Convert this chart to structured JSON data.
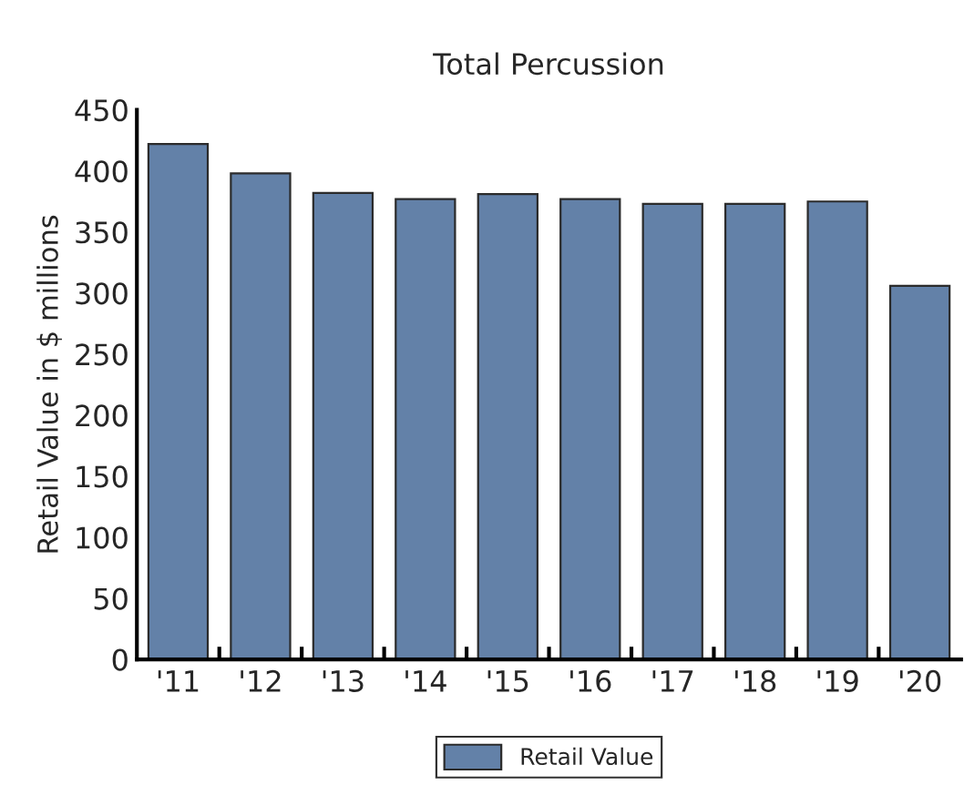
{
  "chart_data": {
    "type": "bar",
    "title": "Total Percussion",
    "ylabel": "Retail Value in $ millions",
    "categories": [
      "'11",
      "'12",
      "'13",
      "'14",
      "'15",
      "'16",
      "'17",
      "'18",
      "'19",
      "'20"
    ],
    "series": [
      {
        "name": "Retail Value",
        "color": "#6381a8",
        "values": [
          422,
          398,
          382,
          377,
          381,
          377,
          373,
          373,
          375,
          306
        ]
      }
    ],
    "ylim": [
      0,
      450
    ],
    "yticks": [
      0,
      50,
      100,
      150,
      200,
      250,
      300,
      350,
      400,
      450
    ],
    "legend": "bottom"
  }
}
